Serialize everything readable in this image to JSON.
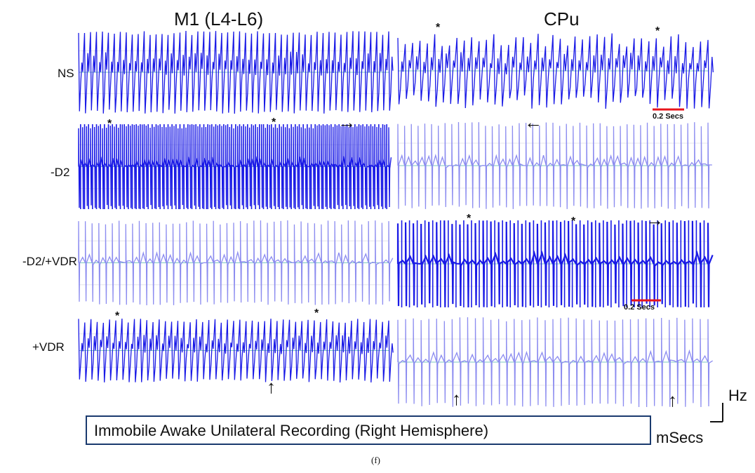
{
  "columns": [
    "M1 (L4-L6)",
    "CPu"
  ],
  "rows": [
    "NS",
    "-D2",
    "-D2/+VDR",
    "+VDR"
  ],
  "markers": {
    "star": "*",
    "arrow_right": "→",
    "arrow_left": "←",
    "arrow_up": "↑"
  },
  "scalebar_label": "0.2 Secs",
  "scalebar_color": "#e8141b",
  "trace_color": "#1a1ae6",
  "trace_light_color": "#8c8cf0",
  "baseline_color": "#7dc7c0",
  "caption": "Immobile Awake Unilateral Recording (Right Hemisphere)",
  "axis_units": {
    "vertical": "Hz",
    "horizontal": "mSecs"
  },
  "subfigure_label": "(f)"
}
